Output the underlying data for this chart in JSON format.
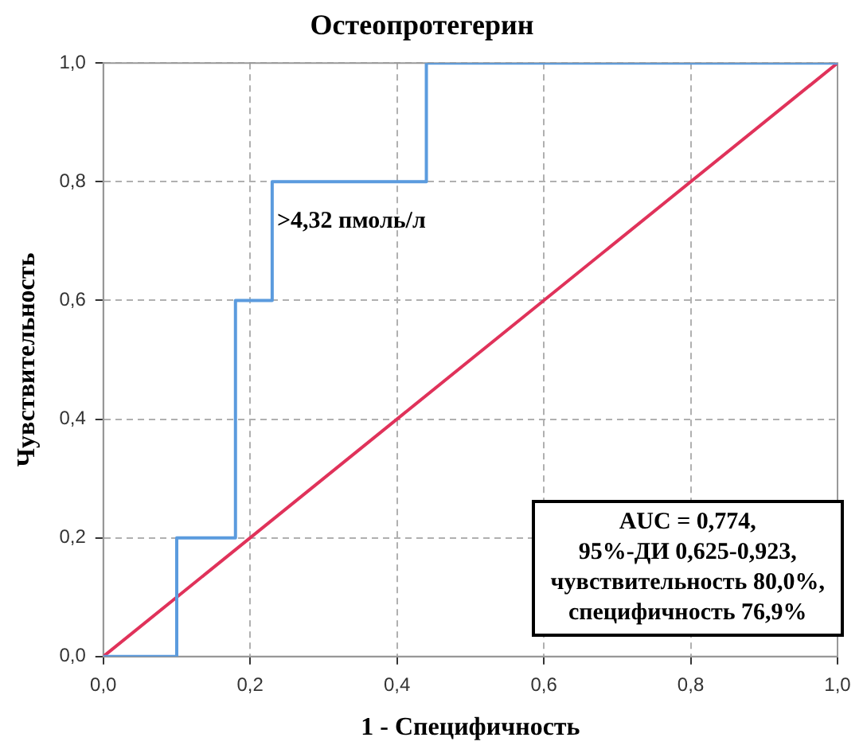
{
  "chart_data": {
    "type": "line",
    "title": "Остеопротегерин",
    "xlabel": "1 - Специфичность",
    "ylabel": "Чувствительность",
    "xlim": [
      0,
      1
    ],
    "ylim": [
      0,
      1
    ],
    "xticks": [
      {
        "value": 0,
        "label": "0,0"
      },
      {
        "value": 0.2,
        "label": "0,2"
      },
      {
        "value": 0.4,
        "label": "0,4"
      },
      {
        "value": 0.6,
        "label": "0,6"
      },
      {
        "value": 0.8,
        "label": "0,8"
      },
      {
        "value": 1,
        "label": "1,0"
      }
    ],
    "yticks": [
      {
        "value": 0,
        "label": "0,0"
      },
      {
        "value": 0.2,
        "label": "0,2"
      },
      {
        "value": 0.4,
        "label": "0,4"
      },
      {
        "value": 0.6,
        "label": "0,6"
      },
      {
        "value": 0.8,
        "label": "0,8"
      },
      {
        "value": 1,
        "label": "1,0"
      }
    ],
    "series": [
      {
        "color": "#5b9bde",
        "x": [
          0,
          0.1,
          0.1,
          0.18,
          0.18,
          0.23,
          0.23,
          0.44,
          0.44,
          1
        ],
        "values": [
          0,
          0,
          0.2,
          0.2,
          0.6,
          0.6,
          0.8,
          0.8,
          1,
          1
        ]
      },
      {
        "color": "#e0325a",
        "x": [
          0,
          1
        ],
        "values": [
          0,
          1
        ]
      }
    ],
    "annotations": [
      {
        "text": ">4,32 пмоль/л",
        "x": 0.23,
        "y": 0.8
      },
      "AUC = 0,774,\n95%-ДИ 0,625-0,923,\nчувствительность 80,0%,\nспецифичность 76,9%"
    ],
    "grid": true,
    "legend": false,
    "marker": "none",
    "line_style": "solid"
  }
}
